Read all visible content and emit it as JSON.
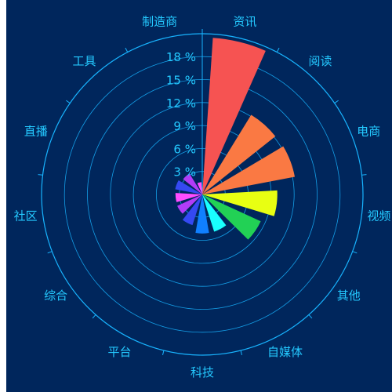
{
  "chart_data": {
    "type": "polar-bar",
    "categories": [
      "资讯",
      "阅读",
      "电商",
      "视频",
      "其他",
      "自媒体",
      "科技",
      "平台",
      "综合",
      "社区",
      "直播",
      "工具",
      "制造商"
    ],
    "values": [
      20.5,
      12.2,
      12.3,
      9.8,
      8.4,
      5.1,
      5.1,
      4.2,
      3.6,
      3.5,
      3.6,
      3.2,
      1.6
    ],
    "colors": [
      "#f65352",
      "#fa7943",
      "#fa7943",
      "#e8ff12",
      "#22d155",
      "#19ffff",
      "#1080ff",
      "#3549f2",
      "#b23cf7",
      "#ff4cff",
      "#3549f2",
      "#b23cf7",
      "#ff4cff"
    ],
    "radial_ticks": [
      "3 %",
      "6 %",
      "9 %",
      "12 %",
      "15 %",
      "18 %"
    ],
    "radial_max": 21,
    "theme": {
      "background": "#00265c",
      "axis_color": "#18b4ff",
      "label_color": "#24c9ff"
    }
  }
}
